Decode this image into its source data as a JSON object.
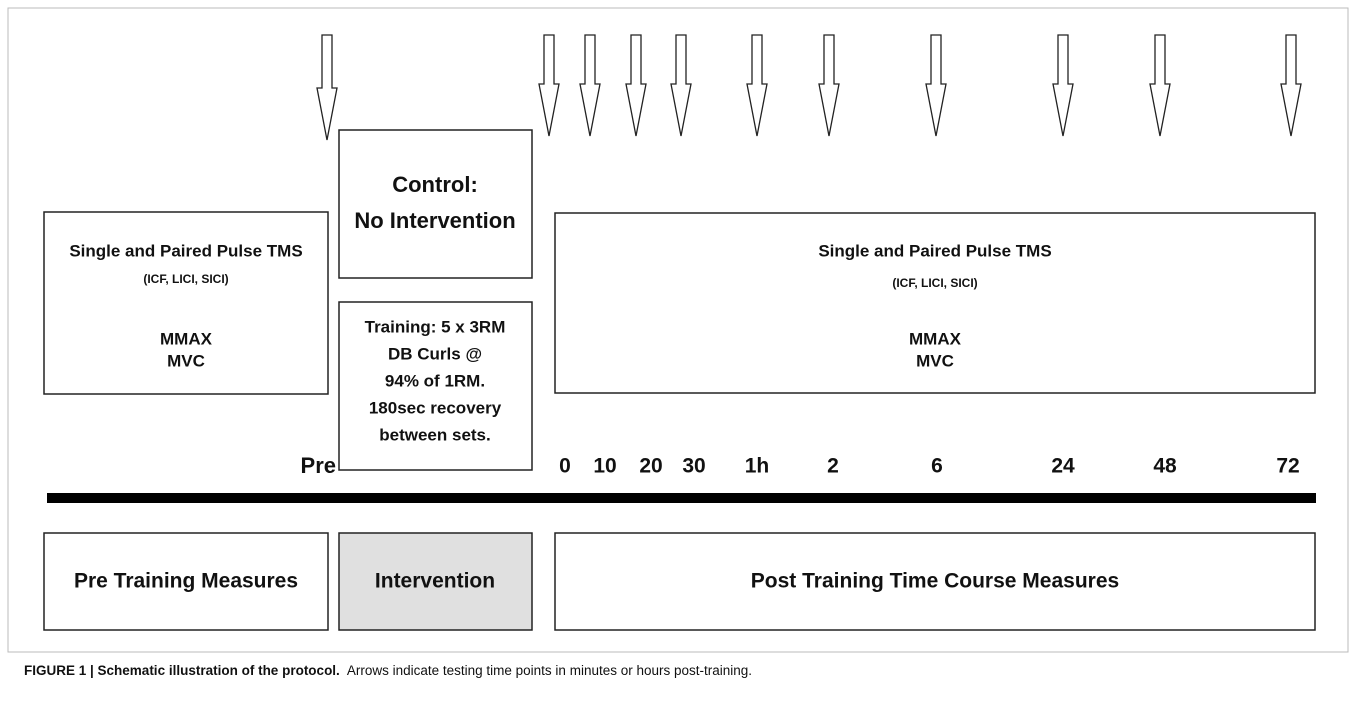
{
  "pre_box": {
    "title": "Single and Paired Pulse TMS",
    "subtitle": "(ICF, LICI, SICI)",
    "lines": [
      "MMAX",
      "MVC"
    ]
  },
  "control_box": {
    "lines": [
      "Control:",
      "No Intervention"
    ]
  },
  "training_box": {
    "lines": [
      "Training: 5 x 3RM",
      "DB Curls @",
      "94% of 1RM.",
      "180sec recovery",
      "between sets."
    ]
  },
  "post_box": {
    "title": "Single and Paired Pulse TMS",
    "subtitle": "(ICF, LICI, SICI)",
    "lines": [
      "MMAX",
      "MVC"
    ]
  },
  "pre_label": "Pre",
  "time_points": [
    "0",
    "10",
    "20",
    "30",
    "1h",
    "2",
    "6",
    "24",
    "48",
    "72"
  ],
  "phases": [
    "Pre Training Measures",
    "Intervention",
    "Post Training Time Course Measures"
  ],
  "caption": {
    "label": "FIGURE 1 | Schematic illustration of the protocol.",
    "text": "Arrows indicate testing time points in minutes or hours post-training."
  }
}
